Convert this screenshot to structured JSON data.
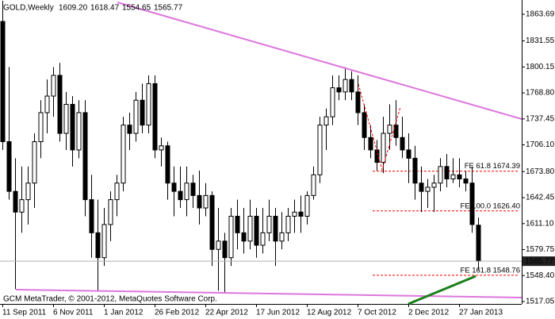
{
  "chart_data": {
    "type": "candlestick",
    "title": "GOLD,Weekly",
    "header_values": [
      "1609.20",
      "1618.47",
      "1554.65",
      "1565.77"
    ],
    "footer": "GCM MetaTrader, © 2001-2012, MetaQuotes Software Corp.",
    "categories": [
      "11 Sep 2011",
      null,
      null,
      null,
      null,
      null,
      null,
      null,
      "6 Nov 2011",
      null,
      null,
      null,
      null,
      null,
      null,
      null,
      "1 Jan 2012",
      null,
      null,
      null,
      null,
      null,
      null,
      null,
      "26 Feb 2012",
      null,
      null,
      null,
      null,
      null,
      null,
      null,
      "22 Apr 2012",
      null,
      null,
      null,
      null,
      null,
      null,
      null,
      "17 Jun 2012",
      null,
      null,
      null,
      null,
      null,
      null,
      null,
      "12 Aug 2012",
      null,
      null,
      null,
      null,
      null,
      null,
      null,
      "7 Oct 2012",
      null,
      null,
      null,
      null,
      null,
      null,
      null,
      "2 Dec 2012",
      null,
      null,
      null,
      null,
      null,
      null,
      null,
      "27 Jan 2013",
      null,
      null,
      null
    ],
    "open": [
      1855,
      1710,
      1650,
      1625,
      1640,
      1660,
      1710,
      1745,
      1765,
      1790,
      1720,
      1755,
      1700,
      1745,
      1640,
      1600,
      1570,
      1610,
      1640,
      1660,
      1730,
      1720,
      1760,
      1730,
      1780,
      1700,
      1705,
      1660,
      1650,
      1640,
      1660,
      1645,
      1630,
      1645,
      1580,
      1590,
      1570,
      1620,
      1600,
      1590,
      1620,
      1585,
      1600,
      1620,
      1590,
      1600,
      1620,
      1625,
      1620,
      1645,
      1670,
      1730,
      1740,
      1775,
      1770,
      1785,
      1770,
      1745,
      1715,
      1700,
      1685,
      1720,
      1730,
      1715,
      1700,
      1690,
      1660,
      1650,
      1655,
      1660,
      1680,
      1665,
      1670,
      1665,
      1660,
      1609.2
    ],
    "high": [
      1880,
      1800,
      1690,
      1680,
      1680,
      1720,
      1760,
      1785,
      1800,
      1805,
      1770,
      1765,
      1760,
      1760,
      1670,
      1640,
      1630,
      1650,
      1670,
      1740,
      1745,
      1770,
      1780,
      1790,
      1790,
      1715,
      1710,
      1680,
      1680,
      1680,
      1670,
      1675,
      1660,
      1650,
      1630,
      1600,
      1630,
      1640,
      1630,
      1640,
      1630,
      1630,
      1640,
      1630,
      1625,
      1630,
      1640,
      1645,
      1650,
      1680,
      1740,
      1750,
      1790,
      1790,
      1800,
      1795,
      1790,
      1755,
      1730,
      1712,
      1740,
      1755,
      1760,
      1740,
      1720,
      1705,
      1680,
      1665,
      1670,
      1690,
      1695,
      1690,
      1690,
      1675,
      1680,
      1618.47
    ],
    "low": [
      1700,
      1640,
      1532,
      1600,
      1610,
      1630,
      1690,
      1720,
      1740,
      1710,
      1700,
      1680,
      1690,
      1620,
      1570,
      1530,
      1560,
      1590,
      1620,
      1650,
      1700,
      1710,
      1720,
      1720,
      1690,
      1680,
      1640,
      1620,
      1630,
      1620,
      1630,
      1610,
      1620,
      1560,
      1530,
      1527,
      1560,
      1580,
      1575,
      1580,
      1570,
      1575,
      1590,
      1560,
      1580,
      1590,
      1600,
      1600,
      1610,
      1640,
      1660,
      1700,
      1730,
      1760,
      1760,
      1760,
      1730,
      1700,
      1690,
      1675,
      1672,
      1700,
      1705,
      1690,
      1660,
      1640,
      1625,
      1630,
      1625,
      1650,
      1655,
      1660,
      1655,
      1650,
      1600,
      1554.65
    ],
    "close": [
      1710,
      1650,
      1625,
      1640,
      1660,
      1710,
      1745,
      1765,
      1790,
      1720,
      1755,
      1700,
      1745,
      1640,
      1600,
      1570,
      1610,
      1640,
      1660,
      1730,
      1720,
      1760,
      1730,
      1780,
      1700,
      1705,
      1660,
      1650,
      1640,
      1660,
      1645,
      1630,
      1645,
      1580,
      1590,
      1570,
      1620,
      1600,
      1590,
      1620,
      1585,
      1600,
      1620,
      1590,
      1600,
      1620,
      1625,
      1620,
      1645,
      1670,
      1730,
      1740,
      1775,
      1770,
      1785,
      1770,
      1745,
      1715,
      1700,
      1685,
      1720,
      1730,
      1715,
      1700,
      1690,
      1660,
      1650,
      1655,
      1660,
      1680,
      1665,
      1670,
      1665,
      1660,
      1610,
      1565.77
    ],
    "up_color": "#ffffff",
    "down_color": "#000000",
    "ylim": [
      1514.18,
      1880.93
    ],
    "yticks": [
      1863.69,
      1831.55,
      1800.15,
      {
        "value": 1768.8,
        "label": "1768.80"
      },
      1737.45,
      {
        "value": 1706.1,
        "label": "1706.10"
      },
      {
        "value": 1673.8,
        "label": "1673.80"
      },
      1642.45,
      {
        "value": 1611.1,
        "label": "1611.10"
      },
      1579.75,
      {
        "value": 1548.4,
        "label": "1548.40"
      },
      1517.05
    ],
    "fe_levels": [
      {
        "label": "FE 61.8 1674.39",
        "value": 1674.39
      },
      {
        "label": "FE 100.0 1626.40",
        "value": 1626.4
      },
      {
        "label": "FE 161.8 1548.76",
        "value": 1548.76
      }
    ],
    "fe_color": "#ff0000",
    "grid": false
  }
}
